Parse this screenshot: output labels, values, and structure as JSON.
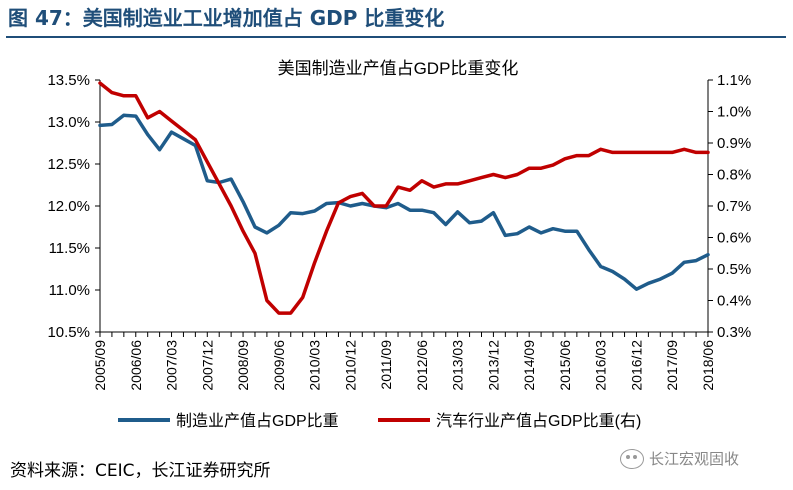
{
  "header": {
    "figure_title": "图 47：美国制造业工业增加值占 GDP 比重变化"
  },
  "footer": {
    "source": "资料来源：CEIC，长江证券研究所",
    "watermark": "长江宏观固收",
    "watermark_icon": "wechat-icon"
  },
  "chart_data": {
    "type": "line",
    "title": "美国制造业产值占GDP比重变化",
    "x": [
      "2005/09",
      "2005/12",
      "2006/03",
      "2006/06",
      "2006/09",
      "2006/12",
      "2007/03",
      "2007/06",
      "2007/09",
      "2007/12",
      "2008/03",
      "2008/06",
      "2008/09",
      "2008/12",
      "2009/03",
      "2009/06",
      "2009/09",
      "2009/12",
      "2010/03",
      "2010/06",
      "2010/09",
      "2010/12",
      "2011/03",
      "2011/06",
      "2011/09",
      "2011/12",
      "2012/03",
      "2012/06",
      "2012/09",
      "2012/12",
      "2013/03",
      "2013/06",
      "2013/09",
      "2013/12",
      "2014/03",
      "2014/06",
      "2014/09",
      "2014/12",
      "2015/03",
      "2015/06",
      "2015/09",
      "2015/12",
      "2016/03",
      "2016/06",
      "2016/09",
      "2016/12",
      "2017/03",
      "2017/06",
      "2017/09",
      "2017/12",
      "2018/03",
      "2018/06"
    ],
    "x_tick_labels": [
      "2005/09",
      "2006/06",
      "2007/03",
      "2007/12",
      "2008/09",
      "2009/06",
      "2010/03",
      "2010/12",
      "2011/09",
      "2012/06",
      "2013/03",
      "2013/12",
      "2014/09",
      "2015/06",
      "2016/03",
      "2016/12",
      "2017/09",
      "2018/06"
    ],
    "y_left": {
      "ylim": [
        10.5,
        13.5
      ],
      "ticks": [
        10.5,
        11.0,
        11.5,
        12.0,
        12.5,
        13.0,
        13.5
      ],
      "tick_labels": [
        "10.5%",
        "11.0%",
        "11.5%",
        "12.0%",
        "12.5%",
        "13.0%",
        "13.5%"
      ]
    },
    "y_right": {
      "ylim": [
        0.3,
        1.1
      ],
      "ticks": [
        0.3,
        0.4,
        0.5,
        0.6,
        0.7,
        0.8,
        0.9,
        1.0,
        1.1
      ],
      "tick_labels": [
        "0.3%",
        "0.4%",
        "0.5%",
        "0.6%",
        "0.7%",
        "0.8%",
        "0.9%",
        "1.0%",
        "1.1%"
      ]
    },
    "series": [
      {
        "name": "制造业产值占GDP比重",
        "axis": "left",
        "color": "#1f5c8b",
        "values": [
          12.96,
          12.97,
          13.08,
          13.07,
          12.85,
          12.67,
          12.88,
          12.8,
          12.72,
          12.3,
          12.28,
          12.32,
          12.05,
          11.75,
          11.68,
          11.77,
          11.92,
          11.91,
          11.94,
          12.03,
          12.04,
          12.0,
          12.03,
          12.0,
          11.98,
          12.03,
          11.95,
          11.95,
          11.92,
          11.78,
          11.93,
          11.8,
          11.82,
          11.92,
          11.65,
          11.67,
          11.75,
          11.68,
          11.73,
          11.7,
          11.7,
          11.48,
          11.28,
          11.22,
          11.13,
          11.01,
          11.08,
          11.13,
          11.2,
          11.33,
          11.35,
          11.42
        ]
      },
      {
        "name": "汽车行业产值占GDP比重(右)",
        "axis": "right",
        "color": "#c00000",
        "values": [
          1.09,
          1.06,
          1.05,
          1.05,
          0.98,
          1.0,
          0.97,
          0.94,
          0.91,
          0.84,
          0.77,
          0.7,
          0.62,
          0.55,
          0.4,
          0.36,
          0.36,
          0.41,
          0.52,
          0.62,
          0.71,
          0.73,
          0.74,
          0.7,
          0.7,
          0.76,
          0.75,
          0.78,
          0.76,
          0.77,
          0.77,
          0.78,
          0.79,
          0.8,
          0.79,
          0.8,
          0.82,
          0.82,
          0.83,
          0.85,
          0.86,
          0.86,
          0.88,
          0.87,
          0.87,
          0.87,
          0.87,
          0.87,
          0.87,
          0.88,
          0.87,
          0.87
        ]
      }
    ],
    "legend": {
      "position": "bottom",
      "entries": [
        "制造业产值占GDP比重",
        "汽车行业产值占GDP比重(右)"
      ]
    },
    "grid": false
  }
}
